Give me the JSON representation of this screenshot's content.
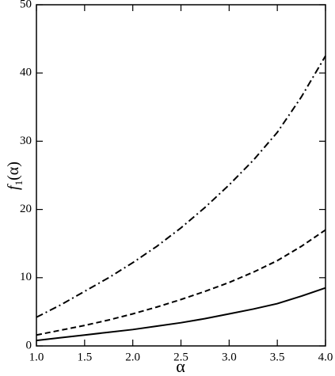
{
  "chart_data": {
    "type": "line",
    "xlabel": "α",
    "ylabel": {
      "italic": "f",
      "subscript": "1",
      "rest": "(α)"
    },
    "x": [
      1.0,
      1.25,
      1.5,
      1.75,
      2.0,
      2.25,
      2.5,
      2.75,
      3.0,
      3.25,
      3.5,
      3.75,
      4.0
    ],
    "series": [
      {
        "color": "#000000",
        "dash": "solid",
        "values": [
          0.8,
          1.2,
          1.6,
          2.0,
          2.4,
          2.9,
          3.4,
          4.0,
          4.7,
          5.4,
          6.2,
          7.3,
          8.5
        ]
      },
      {
        "color": "#000000",
        "dash": "dashed",
        "values": [
          1.6,
          2.3,
          3.0,
          3.8,
          4.7,
          5.7,
          6.8,
          8.0,
          9.3,
          10.8,
          12.5,
          14.6,
          17.0
        ]
      },
      {
        "color": "#000000",
        "dash": "dashdot",
        "values": [
          4.2,
          6.0,
          8.0,
          10.0,
          12.2,
          14.6,
          17.3,
          20.3,
          23.6,
          27.2,
          31.3,
          36.5,
          42.5
        ]
      }
    ],
    "xlim": [
      1.0,
      4.0
    ],
    "xticks": [
      {
        "value": 1.0,
        "label": "1.0"
      },
      {
        "value": 1.5,
        "label": "1.5"
      },
      {
        "value": 2.0,
        "label": "2.0"
      },
      {
        "value": 2.5,
        "label": "2.5"
      },
      {
        "value": 3.0,
        "label": "3.0"
      },
      {
        "value": 3.5,
        "label": "3.5"
      },
      {
        "value": 4.0,
        "label": "4.0"
      }
    ],
    "ylim": [
      0,
      50
    ],
    "yticks": [
      0,
      10,
      20,
      30,
      40,
      50
    ],
    "grid": false
  }
}
